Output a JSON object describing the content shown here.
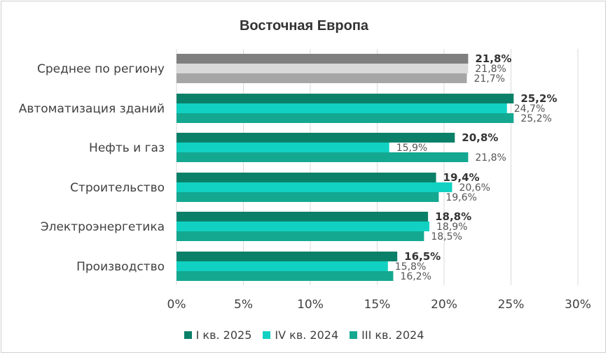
{
  "chart_data": {
    "type": "bar",
    "orientation": "horizontal",
    "title": "Восточная Европа",
    "categories": [
      "Среднее по региону",
      "Автоматизация зданий",
      "Нефть и газ",
      "Строительство",
      "Электроэнергетика",
      "Производство"
    ],
    "series": [
      {
        "name": "I кв. 2025",
        "color": "#0b8069",
        "values": [
          21.8,
          25.2,
          20.8,
          19.4,
          18.8,
          16.5
        ],
        "labels": [
          "21,8%",
          "25,2%",
          "20,8%",
          "19,4%",
          "18,8%",
          "16,5%"
        ]
      },
      {
        "name": "IV кв. 2024",
        "color": "#11d2c2",
        "values": [
          21.8,
          24.7,
          15.9,
          20.6,
          18.9,
          15.8
        ],
        "labels": [
          "21,8%",
          "24,7%",
          "15,9%",
          "20,6%",
          "18,9%",
          "15,8%"
        ]
      },
      {
        "name": "III кв. 2024",
        "color": "#14a891",
        "values": [
          21.7,
          25.2,
          21.8,
          19.6,
          18.5,
          16.2
        ],
        "labels": [
          "21,7%",
          "25,2%",
          "21,8%",
          "19,6%",
          "18,5%",
          "16,2%"
        ]
      }
    ],
    "regional_colors": [
      "#7f7f7f",
      "#d9d9d9",
      "#a6a6a6"
    ],
    "xlim": [
      0,
      30
    ],
    "xticks": [
      "0%",
      "5%",
      "10%",
      "15%",
      "20%",
      "25%",
      "30%"
    ],
    "grid": "vertical",
    "legend": "bottom"
  }
}
